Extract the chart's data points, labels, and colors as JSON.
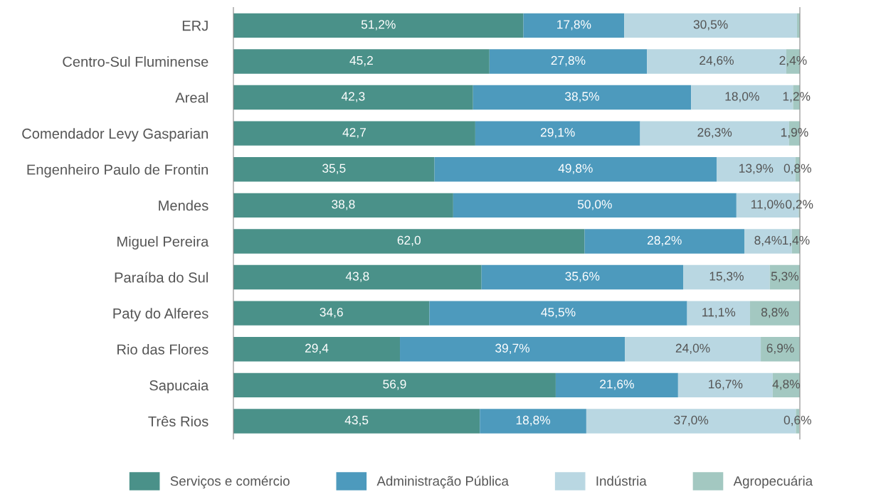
{
  "chart_data": {
    "type": "bar",
    "orientation": "horizontal",
    "stacked": true,
    "legend": "bottom",
    "grid": false,
    "tick_labels": "y",
    "xlim": [
      0,
      100
    ],
    "categories": [
      "ERJ",
      "Centro-Sul Fluminense",
      "Areal",
      "Comendador Levy Gasparian",
      "Engenheiro Paulo de Frontin",
      "Mendes",
      "Miguel Pereira",
      "Paraíba do Sul",
      "Paty do Alferes",
      "Rio das Flores",
      "Sapucaia",
      "Três Rios"
    ],
    "series": [
      {
        "name": "Serviços e comércio",
        "color": "#4a9189",
        "values": [
          51.2,
          45.2,
          42.3,
          42.7,
          35.5,
          38.8,
          62.0,
          43.8,
          34.6,
          29.4,
          56.9,
          43.5
        ],
        "value_labels": [
          "51,2%",
          "45,2",
          "42,3",
          "42,7",
          "35,5",
          "38,8",
          "62,0",
          "43,8",
          "34,6",
          "29,4",
          "56,9",
          "43,5"
        ]
      },
      {
        "name": "Administração Pública",
        "color": "#4d9abd",
        "values": [
          17.8,
          27.8,
          38.5,
          29.1,
          49.8,
          50.0,
          28.2,
          35.6,
          45.5,
          39.7,
          21.6,
          18.8
        ],
        "value_labels": [
          "17,8%",
          "27,8%",
          "38,5%",
          "29,1%",
          "49,8%",
          "50,0%",
          "28,2%",
          "35,6%",
          "45,5%",
          "39,7%",
          "21,6%",
          "18,8%"
        ]
      },
      {
        "name": "Indústria",
        "color": "#b9d7e2",
        "values": [
          30.5,
          24.6,
          18.0,
          26.3,
          13.9,
          11.0,
          8.4,
          15.3,
          11.1,
          24.0,
          16.7,
          37.0
        ],
        "value_labels": [
          "30,5%",
          "24,6%",
          "18,0%",
          "26,3%",
          "13,9%",
          "11,0%",
          "8,4%",
          "15,3%",
          "11,1%",
          "24,0%",
          "16,7%",
          "37,0%"
        ]
      },
      {
        "name": "Agropecuária",
        "color": "#a3c8c1",
        "values": [
          0.5,
          2.4,
          1.2,
          1.9,
          0.8,
          0.2,
          1.4,
          5.3,
          8.8,
          6.9,
          4.8,
          0.6
        ],
        "value_labels": [
          null,
          "2,4%",
          "1,2%",
          "1,9%",
          "0,8%",
          "0,2%",
          "1,4%",
          "5,3%",
          "8,8%",
          "6,9%",
          "4,8%",
          "0,6%"
        ]
      }
    ]
  }
}
